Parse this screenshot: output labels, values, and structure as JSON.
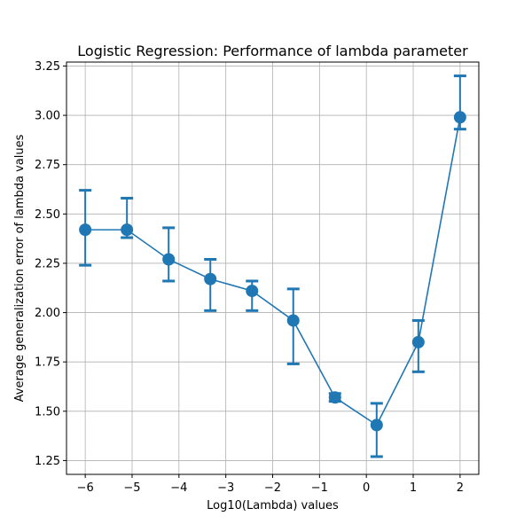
{
  "chart_data": {
    "type": "line",
    "title": "Logistic Regression: Performance of lambda parameter",
    "xlabel": "Log10(Lambda) values",
    "ylabel": "Average generalization error of lambda values",
    "xlim": [
      -6.4,
      2.4
    ],
    "ylim": [
      1.18,
      3.27
    ],
    "xticks": [
      -6,
      -5,
      -4,
      -3,
      -2,
      -1,
      0,
      1,
      2
    ],
    "xtick_labels": [
      "−6",
      "−5",
      "−4",
      "−3",
      "−2",
      "−1",
      "0",
      "1",
      "2"
    ],
    "yticks": [
      1.25,
      1.5,
      1.75,
      2.0,
      2.25,
      2.5,
      2.75,
      3.0,
      3.25
    ],
    "ytick_labels": [
      "1.25",
      "1.50",
      "1.75",
      "2.00",
      "2.25",
      "2.50",
      "2.75",
      "3.00",
      "3.25"
    ],
    "grid": true,
    "series": [
      {
        "color": "#1f77b4",
        "x": [
          -6.0,
          -5.11,
          -4.22,
          -3.33,
          -2.44,
          -1.56,
          -0.67,
          0.22,
          1.11,
          2.0
        ],
        "y": [
          2.42,
          2.42,
          2.27,
          2.17,
          2.11,
          1.96,
          1.57,
          1.43,
          1.85,
          2.99
        ],
        "err_low": [
          2.24,
          2.38,
          2.16,
          2.01,
          2.01,
          1.74,
          1.55,
          1.27,
          1.7,
          2.93
        ],
        "err_high": [
          2.62,
          2.58,
          2.43,
          2.27,
          2.16,
          2.12,
          1.59,
          1.54,
          1.96,
          3.2
        ]
      }
    ]
  }
}
